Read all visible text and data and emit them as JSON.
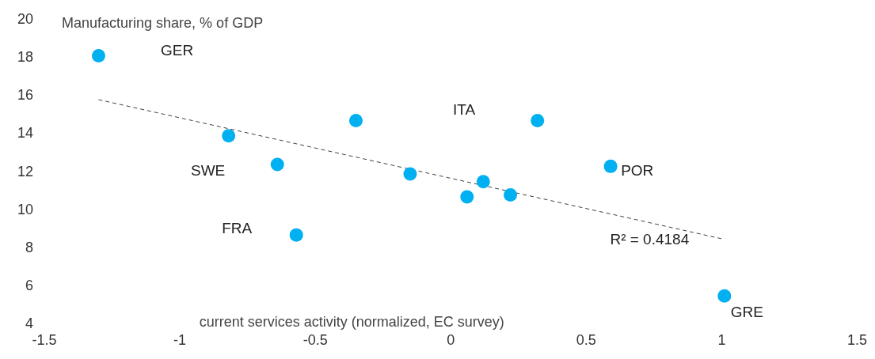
{
  "chart_data": {
    "type": "scatter",
    "xlabel": "current services activity (normalized, EC survey)",
    "ylabel": "Manufacturing share, % of GDP",
    "xlim": [
      -1.5,
      1.5
    ],
    "xticks": [
      -1.5,
      -1,
      -0.5,
      0,
      0.5,
      1,
      1.5
    ],
    "ylim": [
      4,
      20
    ],
    "yticks": [
      4,
      6,
      8,
      10,
      12,
      14,
      16,
      18,
      20
    ],
    "grid": false,
    "legend": false,
    "marker": "circle",
    "series": [
      {
        "type": "scatter",
        "color": "#00b0f0",
        "x": [
          -1.3,
          -0.82,
          -0.64,
          -0.57,
          -0.35,
          -0.15,
          0.06,
          0.12,
          0.22,
          0.32,
          0.59,
          1.01
        ],
        "values": [
          18.1,
          13.9,
          12.4,
          8.7,
          14.7,
          11.9,
          10.7,
          11.5,
          10.8,
          14.7,
          12.3,
          5.5
        ]
      },
      {
        "type": "line",
        "color": "#404040",
        "line_style": "dashed",
        "marker": "none",
        "x": [
          -1.3,
          1.0
        ],
        "values": [
          15.8,
          8.5
        ]
      }
    ],
    "annotations": [
      "GER",
      "SWE",
      {
        "text": "FRA",
        "x": -0.57,
        "y": 8.7
      },
      "ITA",
      {
        "text": "POR",
        "x": 0.59,
        "y": 12.3
      },
      {
        "text": "GRE",
        "x": 1.01,
        "y": 5.5
      },
      {
        "text": "R² = 0.4184",
        "x": 1.0,
        "y": 8.5
      }
    ]
  }
}
